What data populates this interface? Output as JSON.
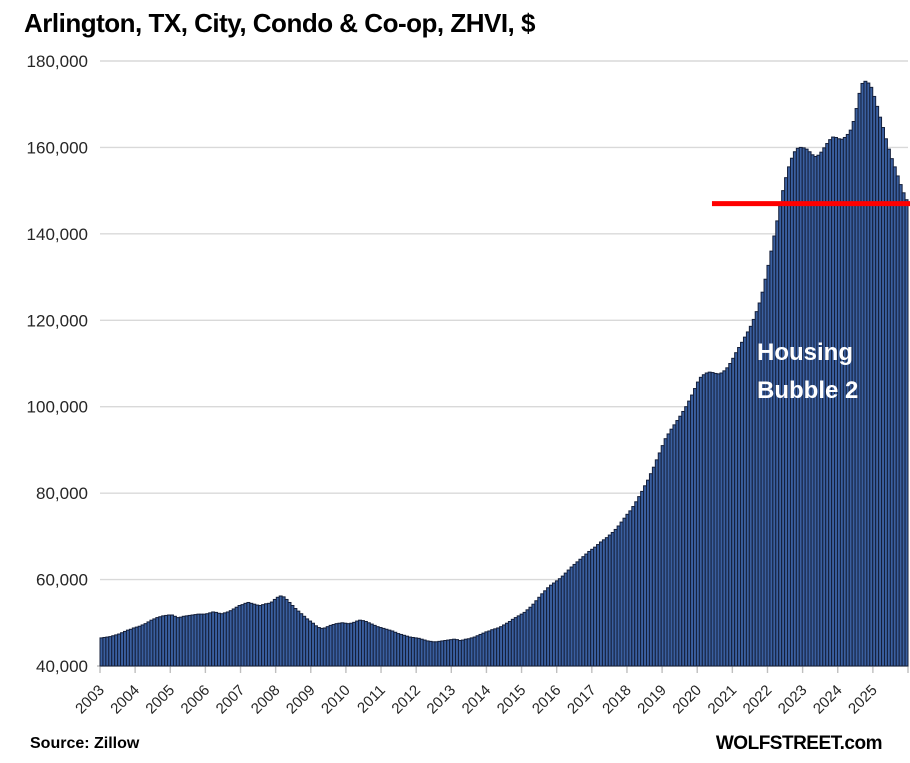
{
  "chart_data": {
    "type": "bar",
    "title": "Arlington, TX, City, Condo & Co-op, ZHVI, $",
    "source_note": "Source: Zillow",
    "branding": "WOLFSTREET.com",
    "annotation": {
      "line1": "Housing",
      "line2": "Bubble 2"
    },
    "frequency": "monthly",
    "series_start": "2003-01",
    "series_end": "2025-11",
    "ylim": [
      40000,
      180000
    ],
    "ytick_interval": 20000,
    "ytick_labels": [
      "180,000",
      "160,000",
      "140,000",
      "120,000",
      "100,000",
      "80,000",
      "60,000",
      "40,000"
    ],
    "ytick_values": [
      180000,
      160000,
      140000,
      120000,
      100000,
      80000,
      60000,
      40000
    ],
    "x_year_labels": [
      "2003",
      "2004",
      "2005",
      "2006",
      "2007",
      "2008",
      "2009",
      "2010",
      "2011",
      "2012",
      "2013",
      "2014",
      "2015",
      "2016",
      "2017",
      "2018",
      "2019",
      "2020",
      "2021",
      "2022",
      "2023",
      "2024",
      "2025"
    ],
    "x_axis_span_years": [
      2003,
      2026
    ],
    "grid": "horizontal",
    "legend": "none",
    "red_line": {
      "value": 147000,
      "start_year": 2020.42,
      "end_year": 2026.0,
      "color": "#ff0000"
    },
    "colors": {
      "bar_fill": "#3a5f9f",
      "bar_stroke": "#141f3a",
      "gridline": "#d9d9d9",
      "axis_line": "#bfbfbf",
      "tick": "#bfbfbf",
      "axis_text": "#262626",
      "title_text": "#000000",
      "annotation_text": "#ffffff",
      "red_line": "#ff0000"
    },
    "monthly_values": [
      46500,
      46600,
      46700,
      46800,
      47000,
      47200,
      47400,
      47700,
      48000,
      48300,
      48500,
      48800,
      49000,
      49200,
      49500,
      49800,
      50200,
      50600,
      50900,
      51200,
      51400,
      51600,
      51700,
      51800,
      51800,
      51500,
      51200,
      51300,
      51500,
      51600,
      51700,
      51800,
      51900,
      52000,
      52000,
      52000,
      52100,
      52300,
      52500,
      52400,
      52200,
      52100,
      52300,
      52500,
      52800,
      53200,
      53600,
      54000,
      54200,
      54500,
      54700,
      54500,
      54300,
      54100,
      54000,
      54200,
      54400,
      54500,
      54800,
      55400,
      55900,
      56200,
      56000,
      55400,
      54700,
      54000,
      53300,
      52700,
      52100,
      51500,
      50900,
      50400,
      49900,
      49300,
      48900,
      48700,
      48800,
      49100,
      49400,
      49600,
      49800,
      49900,
      50000,
      49900,
      49800,
      49900,
      50100,
      50400,
      50600,
      50500,
      50300,
      50000,
      49700,
      49400,
      49100,
      48900,
      48700,
      48500,
      48300,
      48100,
      47800,
      47500,
      47300,
      47100,
      46900,
      46700,
      46600,
      46500,
      46400,
      46200,
      46000,
      45800,
      45700,
      45600,
      45600,
      45700,
      45800,
      45900,
      46000,
      46100,
      46200,
      46100,
      45900,
      46000,
      46200,
      46300,
      46500,
      46700,
      47000,
      47300,
      47600,
      47900,
      48100,
      48400,
      48600,
      48800,
      49100,
      49500,
      49900,
      50300,
      50800,
      51200,
      51600,
      52000,
      52400,
      53000,
      53600,
      54300,
      55100,
      55900,
      56700,
      57400,
      58100,
      58700,
      59200,
      59700,
      60200,
      60800,
      61500,
      62200,
      62900,
      63500,
      64100,
      64700,
      65300,
      65900,
      66500,
      67000,
      67500,
      68100,
      68700,
      69200,
      69700,
      70300,
      70900,
      71600,
      72400,
      73300,
      74200,
      75100,
      75900,
      76900,
      78000,
      79200,
      80400,
      81700,
      83000,
      84500,
      86000,
      87700,
      89300,
      91000,
      92600,
      93700,
      94800,
      95800,
      96800,
      97800,
      98900,
      100000,
      101300,
      102700,
      104200,
      105700,
      106800,
      107400,
      107800,
      108000,
      107900,
      107700,
      107600,
      107800,
      108300,
      109000,
      110000,
      111200,
      112500,
      113700,
      114900,
      116100,
      117300,
      118600,
      120200,
      122000,
      124000,
      126500,
      129500,
      132700,
      136000,
      139500,
      143000,
      146500,
      150000,
      153000,
      155500,
      157500,
      159000,
      159800,
      160000,
      159900,
      159600,
      159000,
      158300,
      157900,
      158200,
      158900,
      159900,
      160900,
      161800,
      162400,
      162300,
      162000,
      161900,
      162300,
      163000,
      164000,
      166000,
      169000,
      172500,
      174800,
      175300,
      174900,
      173900,
      171800,
      169500,
      167000,
      164600,
      162000,
      159600,
      157400,
      155500,
      153400,
      151400,
      149500,
      147900
    ]
  }
}
